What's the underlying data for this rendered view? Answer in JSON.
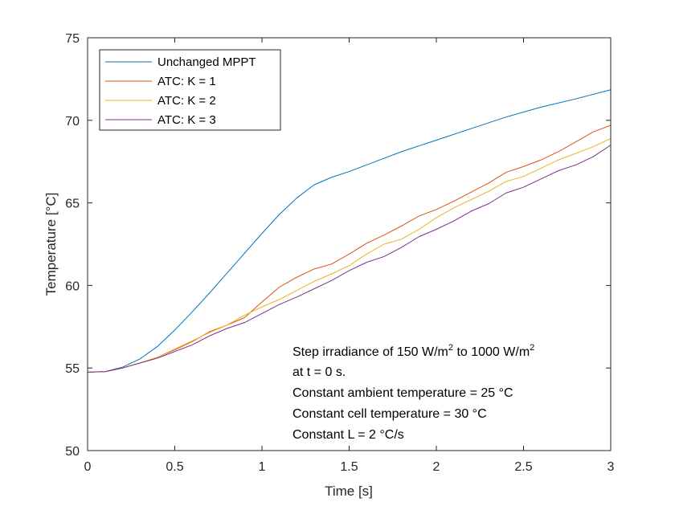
{
  "chart_data": {
    "type": "line",
    "title": "",
    "xlabel": "Time [s]",
    "ylabel": "Temperature [°C]",
    "xlim": [
      0,
      3
    ],
    "ylim": [
      50,
      75
    ],
    "xticks": [
      0,
      0.5,
      1,
      1.5,
      2,
      2.5,
      3
    ],
    "xtick_labels": [
      "0",
      "0.5",
      "1",
      "1.5",
      "2",
      "2.5",
      "3"
    ],
    "yticks": [
      50,
      55,
      60,
      65,
      70,
      75
    ],
    "ytick_labels": [
      "50",
      "55",
      "60",
      "65",
      "70",
      "75"
    ],
    "grid": false,
    "legend_position": "top-left",
    "series": [
      {
        "name": "Unchanged MPPT",
        "color": "#0072BD",
        "x": [
          0,
          0.1,
          0.2,
          0.3,
          0.4,
          0.5,
          0.6,
          0.7,
          0.8,
          0.9,
          1.0,
          1.1,
          1.2,
          1.3,
          1.4,
          1.5,
          1.6,
          1.7,
          1.8,
          1.9,
          2.0,
          2.2,
          2.4,
          2.6,
          2.8,
          3.0
        ],
        "y": [
          54.75,
          54.78,
          55.05,
          55.55,
          56.3,
          57.3,
          58.4,
          59.55,
          60.75,
          61.95,
          63.15,
          64.3,
          65.3,
          66.1,
          66.55,
          66.9,
          67.3,
          67.7,
          68.1,
          68.45,
          68.8,
          69.5,
          70.2,
          70.8,
          71.3,
          71.85
        ]
      },
      {
        "name": "ATC: K = 1",
        "color": "#D95319",
        "x": [
          0,
          0.1,
          0.2,
          0.3,
          0.4,
          0.5,
          0.6,
          0.7,
          0.8,
          0.9,
          1.0,
          1.1,
          1.2,
          1.3,
          1.4,
          1.5,
          1.6,
          1.7,
          1.8,
          1.9,
          2.0,
          2.1,
          2.2,
          2.3,
          2.4,
          2.5,
          2.6,
          2.7,
          2.8,
          2.9,
          3.0
        ],
        "y": [
          54.75,
          54.78,
          55.0,
          55.3,
          55.65,
          56.1,
          56.6,
          57.2,
          57.6,
          58.05,
          59.0,
          59.9,
          60.5,
          61.0,
          61.3,
          61.9,
          62.55,
          63.05,
          63.6,
          64.2,
          64.6,
          65.1,
          65.65,
          66.2,
          66.85,
          67.2,
          67.6,
          68.1,
          68.7,
          69.3,
          69.7
        ]
      },
      {
        "name": "ATC: K = 2",
        "color": "#EDB120",
        "x": [
          0,
          0.1,
          0.2,
          0.3,
          0.4,
          0.5,
          0.6,
          0.7,
          0.8,
          0.9,
          1.0,
          1.1,
          1.2,
          1.3,
          1.4,
          1.5,
          1.6,
          1.7,
          1.8,
          1.9,
          2.0,
          2.1,
          2.2,
          2.3,
          2.4,
          2.5,
          2.6,
          2.7,
          2.8,
          2.9,
          3.0
        ],
        "y": [
          54.75,
          54.78,
          55.0,
          55.3,
          55.65,
          56.15,
          56.65,
          57.15,
          57.6,
          58.2,
          58.7,
          59.15,
          59.7,
          60.25,
          60.7,
          61.2,
          61.9,
          62.5,
          62.8,
          63.4,
          64.1,
          64.7,
          65.2,
          65.7,
          66.3,
          66.6,
          67.1,
          67.6,
          68.0,
          68.4,
          68.9
        ]
      },
      {
        "name": "ATC: K = 3",
        "color": "#7E2F8E",
        "x": [
          0,
          0.1,
          0.2,
          0.3,
          0.4,
          0.5,
          0.6,
          0.7,
          0.8,
          0.9,
          1.0,
          1.1,
          1.2,
          1.3,
          1.4,
          1.5,
          1.6,
          1.7,
          1.8,
          1.9,
          2.0,
          2.1,
          2.2,
          2.3,
          2.4,
          2.5,
          2.6,
          2.7,
          2.8,
          2.9,
          3.0
        ],
        "y": [
          54.75,
          54.78,
          55.0,
          55.3,
          55.6,
          56.0,
          56.4,
          56.95,
          57.4,
          57.75,
          58.3,
          58.85,
          59.3,
          59.8,
          60.3,
          60.9,
          61.4,
          61.75,
          62.3,
          62.95,
          63.4,
          63.9,
          64.5,
          64.95,
          65.6,
          65.95,
          66.45,
          66.95,
          67.3,
          67.8,
          68.5
        ]
      }
    ],
    "annotation": {
      "line1_a": "Step irradiance of 150 W/m",
      "line1_sup1": "2",
      "line1_b": " to 1000 W/m",
      "line1_sup2": "2",
      "line2": "at t = 0 s.",
      "line3": "Constant ambient temperature = 25 °C",
      "line4": "Constant cell temperature = 30 °C",
      "line5": "Constant L = 2 °C/s"
    }
  }
}
